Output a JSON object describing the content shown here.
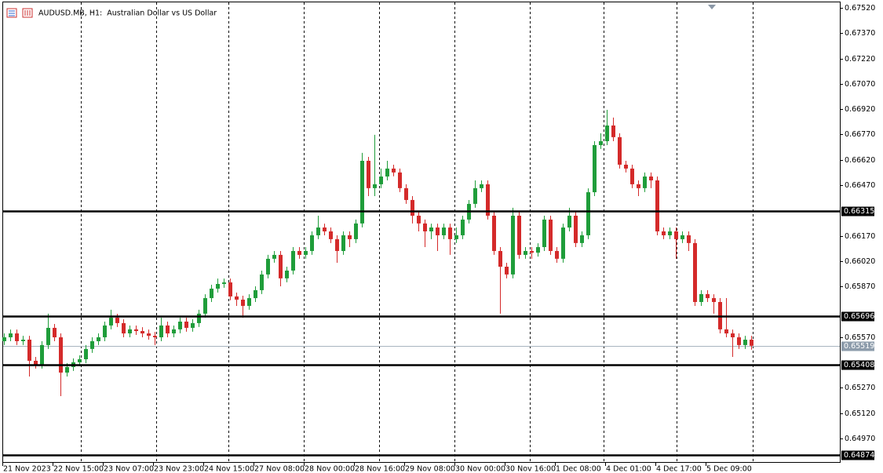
{
  "chart_data": {
    "type": "candlestick",
    "title": "AUDUSD.MB, H1:  Australian Dollar vs US Dollar",
    "up_color": "#1f9d3a",
    "down_color": "#d42a2a",
    "open": [
      0.65546,
      0.65569,
      0.65592,
      0.65546,
      0.65555,
      0.6543,
      0.65407,
      0.65523,
      0.65625,
      0.65569,
      0.6536,
      0.65393,
      0.65421,
      0.65439,
      0.655,
      0.65546,
      0.65569,
      0.65639,
      0.65685,
      0.65653,
      0.65592,
      0.65616,
      0.65606,
      0.65592,
      0.65578,
      0.65569,
      0.65639,
      0.65592,
      0.65616,
      0.65662,
      0.65625,
      0.65653,
      0.65709,
      0.65801,
      0.65857,
      0.65885,
      0.65894,
      0.65811,
      0.65792,
      0.65755,
      0.65801,
      0.65848,
      0.65941,
      0.66034,
      0.66057,
      0.65918,
      0.65964,
      0.6608,
      0.66057,
      0.6608,
      0.66173,
      0.66219,
      0.66196,
      0.6615,
      0.6608,
      0.66173,
      0.6615,
      0.66243,
      0.66614,
      0.66452,
      0.66475,
      0.66521,
      0.66568,
      0.66545,
      0.66452,
      0.66382,
      0.66289,
      0.66243,
      0.66196,
      0.66219,
      0.66173,
      0.66219,
      0.6615,
      0.66173,
      0.66266,
      0.66359,
      0.66452,
      0.66475,
      0.66289,
      0.6608,
      0.65987,
      0.65941,
      0.66289,
      0.66057,
      0.6608,
      0.6607,
      0.66103,
      0.66266,
      0.6608,
      0.66034,
      0.66219,
      0.66289,
      0.66127,
      0.66173,
      0.66428,
      0.66707,
      0.6673,
      0.66823,
      0.66754,
      0.66591,
      0.66568,
      0.66475,
      0.66452,
      0.66521,
      0.66498,
      0.66196,
      0.66173,
      0.66196,
      0.6615,
      0.66173,
      0.66127,
      0.65778,
      0.65825,
      0.65801,
      0.65778,
      0.65616,
      0.65592,
      0.65569,
      0.65523,
      0.65555
    ],
    "high": [
      0.65592,
      0.65615,
      0.65615,
      0.65578,
      0.65578,
      0.65453,
      0.65546,
      0.65709,
      0.65648,
      0.65592,
      0.65416,
      0.65444,
      0.65462,
      0.65523,
      0.65569,
      0.65592,
      0.65662,
      0.65732,
      0.65708,
      0.65676,
      0.65639,
      0.65639,
      0.65629,
      0.65615,
      0.65601,
      0.65685,
      0.65662,
      0.65639,
      0.65685,
      0.65685,
      0.65676,
      0.65732,
      0.65824,
      0.6588,
      0.65917,
      0.65917,
      0.65917,
      0.65834,
      0.65815,
      0.65824,
      0.65871,
      0.65964,
      0.66057,
      0.6608,
      0.6608,
      0.65987,
      0.66103,
      0.66103,
      0.66103,
      0.66196,
      0.66289,
      0.66242,
      0.66219,
      0.66173,
      0.66196,
      0.66196,
      0.66266,
      0.66661,
      0.66637,
      0.66768,
      0.66568,
      0.66614,
      0.66591,
      0.66568,
      0.66475,
      0.66405,
      0.66312,
      0.66266,
      0.66242,
      0.66242,
      0.66242,
      0.66242,
      0.66219,
      0.66289,
      0.66382,
      0.66498,
      0.66498,
      0.66498,
      0.66312,
      0.66103,
      0.6601,
      0.66336,
      0.66312,
      0.66103,
      0.66103,
      0.66126,
      0.66289,
      0.66289,
      0.66103,
      0.66242,
      0.66336,
      0.66312,
      0.66196,
      0.66451,
      0.6673,
      0.66777,
      0.66916,
      0.6687,
      0.66777,
      0.66614,
      0.66591,
      0.66498,
      0.66545,
      0.66545,
      0.66521,
      0.66219,
      0.66219,
      0.66219,
      0.66196,
      0.66196,
      0.6615,
      0.65848,
      0.65848,
      0.65824,
      0.65801,
      0.65801,
      0.65615,
      0.65592,
      0.65578,
      0.65578
    ],
    "low": [
      0.65523,
      0.65546,
      0.65523,
      0.65523,
      0.65337,
      0.65384,
      0.65384,
      0.655,
      0.65546,
      0.65221,
      0.65337,
      0.6537,
      0.65398,
      0.65416,
      0.65477,
      0.65523,
      0.65546,
      0.65616,
      0.6563,
      0.65569,
      0.65569,
      0.65583,
      0.65569,
      0.65555,
      0.65523,
      0.65546,
      0.65569,
      0.65569,
      0.65593,
      0.65602,
      0.65602,
      0.6563,
      0.65686,
      0.65778,
      0.65834,
      0.65862,
      0.65788,
      0.65755,
      0.65685,
      0.65732,
      0.65778,
      0.65825,
      0.65918,
      0.66011,
      0.65871,
      0.65895,
      0.65941,
      0.66034,
      0.66034,
      0.66057,
      0.6615,
      0.66173,
      0.66127,
      0.6601,
      0.66057,
      0.66103,
      0.66127,
      0.6622,
      0.66405,
      0.66405,
      0.66452,
      0.66498,
      0.66522,
      0.66429,
      0.66359,
      0.66243,
      0.66196,
      0.66103,
      0.6615,
      0.6608,
      0.6615,
      0.66057,
      0.66127,
      0.6615,
      0.66243,
      0.66336,
      0.66429,
      0.66266,
      0.66057,
      0.65709,
      0.65918,
      0.65918,
      0.66034,
      0.66034,
      0.66034,
      0.66047,
      0.6608,
      0.66057,
      0.6601,
      0.66011,
      0.66196,
      0.66103,
      0.66103,
      0.6615,
      0.66405,
      0.66684,
      0.66707,
      0.6673,
      0.66568,
      0.66545,
      0.66452,
      0.66405,
      0.66429,
      0.66452,
      0.66173,
      0.6615,
      0.6615,
      0.66034,
      0.66127,
      0.6608,
      0.65755,
      0.65755,
      0.65778,
      0.65709,
      0.65592,
      0.65569,
      0.65453,
      0.655,
      0.655,
      0.65496
    ],
    "close": [
      0.65569,
      0.65592,
      0.65546,
      0.65555,
      0.6543,
      0.65407,
      0.65523,
      0.65625,
      0.65569,
      0.6536,
      0.65393,
      0.65421,
      0.65439,
      0.655,
      0.65546,
      0.65569,
      0.65639,
      0.65685,
      0.65653,
      0.65592,
      0.65616,
      0.65606,
      0.65592,
      0.65578,
      0.65569,
      0.65639,
      0.65592,
      0.65616,
      0.65662,
      0.65625,
      0.65653,
      0.65709,
      0.65801,
      0.65857,
      0.65885,
      0.65894,
      0.65811,
      0.65792,
      0.65755,
      0.65801,
      0.65848,
      0.65941,
      0.66034,
      0.66057,
      0.65918,
      0.65964,
      0.6608,
      0.66057,
      0.6608,
      0.66173,
      0.66219,
      0.66196,
      0.6615,
      0.6608,
      0.66173,
      0.6615,
      0.66243,
      0.66614,
      0.66452,
      0.66475,
      0.66521,
      0.66568,
      0.66545,
      0.66452,
      0.66382,
      0.66289,
      0.66243,
      0.66196,
      0.66219,
      0.66173,
      0.66219,
      0.6615,
      0.66173,
      0.66266,
      0.66359,
      0.66452,
      0.66475,
      0.66289,
      0.6608,
      0.65987,
      0.65941,
      0.66289,
      0.66057,
      0.6608,
      0.6607,
      0.66103,
      0.66266,
      0.6608,
      0.66034,
      0.66219,
      0.66289,
      0.66127,
      0.66173,
      0.66428,
      0.66707,
      0.6673,
      0.66823,
      0.66754,
      0.66591,
      0.66568,
      0.66475,
      0.66452,
      0.66521,
      0.66498,
      0.66196,
      0.66173,
      0.66196,
      0.6615,
      0.66173,
      0.66127,
      0.65778,
      0.65825,
      0.65801,
      0.65778,
      0.65616,
      0.65592,
      0.65569,
      0.65523,
      0.65555,
      0.65519
    ],
    "xlabels": [
      "21 Nov 2023",
      "22 Nov 15:00",
      "23 Nov 07:00",
      "23 Nov 23:00",
      "24 Nov 15:00",
      "27 Nov 08:00",
      "28 Nov 00:00",
      "28 Nov 16:00",
      "29 Nov 08:00",
      "30 Nov 00:00",
      "30 Nov 16:00",
      "1 Dec 08:00",
      "4 Dec 01:00",
      "4 Dec 17:00",
      "5 Dec 09:00"
    ],
    "ylim": [
      0.64826,
      0.67566
    ],
    "yticks": [
      {
        "value": 0.6752,
        "label": "0.67520"
      },
      {
        "value": 0.6737,
        "label": "0.67370"
      },
      {
        "value": 0.6722,
        "label": "0.67220"
      },
      {
        "value": 0.6707,
        "label": "0.67070"
      },
      {
        "value": 0.6692,
        "label": "0.66920"
      },
      {
        "value": 0.6677,
        "label": "0.66770"
      },
      {
        "value": 0.6662,
        "label": "0.66620"
      },
      {
        "value": 0.6647,
        "label": "0.66470"
      },
      {
        "value": 0.6617,
        "label": "0.66170"
      },
      {
        "value": 0.6602,
        "label": "0.66020"
      },
      {
        "value": 0.6587,
        "label": "0.65870"
      },
      {
        "value": 0.6557,
        "label": "0.65570"
      },
      {
        "value": 0.6527,
        "label": "0.65270"
      },
      {
        "value": 0.6512,
        "label": "0.65120"
      },
      {
        "value": 0.6497,
        "label": "0.64970"
      }
    ],
    "levels": [
      0.66315,
      0.65696,
      0.65408,
      0.64874
    ],
    "current_price": 0.65519
  }
}
